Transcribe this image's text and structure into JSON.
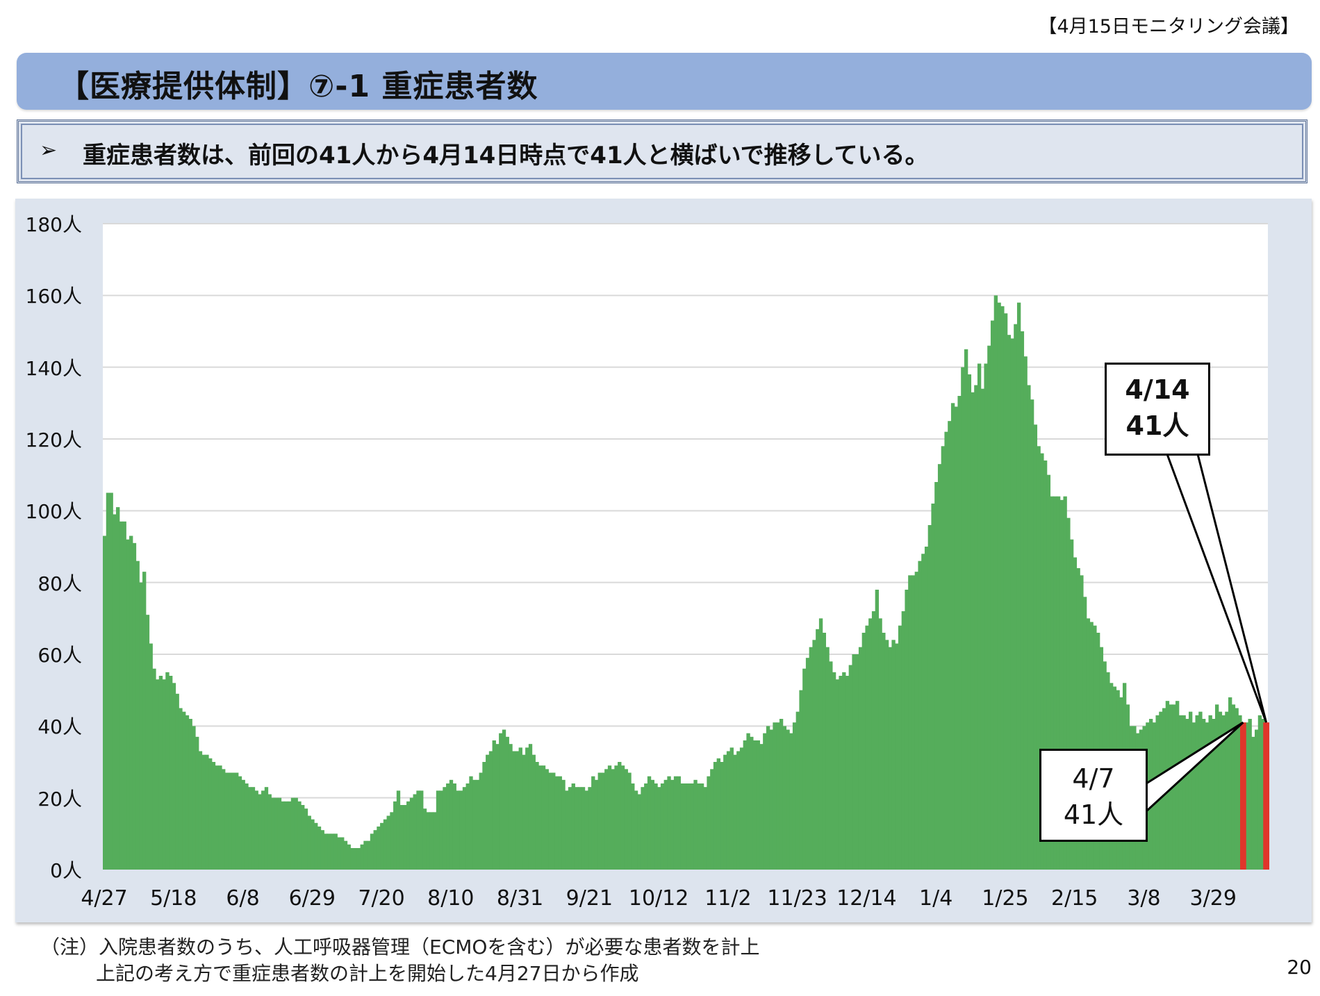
{
  "header": {
    "meeting_label": "【4月15日モニタリング会議】",
    "title": "【医療提供体制】⑦-1 重症患者数",
    "summary_bullet": "➢",
    "summary": "重症患者数は、前回の41人から4月14日時点で41人と横ばいで推移している。"
  },
  "footer": {
    "note_line1": "（注）入院患者数のうち、人工呼吸器管理（ECMOを含む）が必要な患者数を計上",
    "note_line2": "上記の考え方で重症患者数の計上を開始した4月27日から作成",
    "page_number": "20"
  },
  "callouts": {
    "latest": {
      "date": "4/14",
      "value": "41人"
    },
    "previous": {
      "date": "4/7",
      "value": "41人"
    }
  },
  "colors": {
    "bar": "#55ad5b",
    "highlight": "#e0352b",
    "frame_bg": "#dde4ee",
    "title_bg": "#94afdc",
    "gridline": "#d9d9d9"
  },
  "chart_data": {
    "type": "bar",
    "title": "重症患者数",
    "xlabel": "",
    "ylabel": "",
    "ylim": [
      0,
      180
    ],
    "yticks": [
      0,
      20,
      40,
      60,
      80,
      100,
      120,
      140,
      160,
      180
    ],
    "ytick_labels": [
      "0人",
      "20人",
      "40人",
      "60人",
      "80人",
      "100人",
      "120人",
      "140人",
      "160人",
      "180人"
    ],
    "xtick_labels": [
      "4/27",
      "5/18",
      "6/8",
      "6/29",
      "7/20",
      "8/10",
      "8/31",
      "9/21",
      "10/12",
      "11/2",
      "11/23",
      "12/14",
      "1/4",
      "1/25",
      "2/15",
      "3/8",
      "3/29"
    ],
    "xtick_interval_days": 21,
    "start_date": "4/27",
    "end_date": "4/14",
    "grid": true,
    "legend": null,
    "highlighted_bars": [
      {
        "date": "4/7",
        "index": 345,
        "value": 41
      },
      {
        "date": "4/14",
        "index": 352,
        "value": 41
      }
    ],
    "series": [
      {
        "name": "重症患者数",
        "values": [
          93,
          105,
          105,
          99,
          101,
          97,
          97,
          92,
          93,
          91,
          86,
          80,
          83,
          71,
          63,
          56,
          53,
          54,
          53,
          55,
          54,
          52,
          49,
          45,
          44,
          43,
          42,
          40,
          37,
          33,
          32,
          32,
          31,
          30,
          29,
          29,
          28,
          27,
          27,
          27,
          27,
          26,
          25,
          24,
          23,
          23,
          22,
          21,
          22,
          23,
          21,
          20,
          20,
          20,
          19,
          19,
          19,
          20,
          20,
          19,
          18,
          17,
          15,
          14,
          13,
          12,
          11,
          10,
          10,
          10,
          10,
          9,
          9,
          8,
          7,
          6,
          6,
          6,
          7,
          8,
          8,
          10,
          11,
          12,
          13,
          14,
          15,
          16,
          19,
          22,
          18,
          18,
          19,
          20,
          21,
          22,
          22,
          17,
          16,
          16,
          16,
          22,
          22,
          23,
          24,
          25,
          24,
          22,
          22,
          23,
          24,
          26,
          25,
          25,
          27,
          30,
          32,
          33,
          36,
          35,
          38,
          39,
          37,
          35,
          33,
          33,
          34,
          32,
          34,
          35,
          32,
          30,
          29,
          29,
          28,
          27,
          27,
          26,
          26,
          25,
          22,
          23,
          24,
          23,
          23,
          23,
          22,
          23,
          26,
          25,
          27,
          27,
          28,
          29,
          28,
          29,
          30,
          29,
          28,
          27,
          24,
          22,
          21,
          23,
          24,
          26,
          25,
          24,
          23,
          24,
          25,
          26,
          25,
          26,
          26,
          24,
          24,
          24,
          24,
          25,
          24,
          24,
          23,
          26,
          28,
          30,
          31,
          30,
          32,
          33,
          34,
          32,
          33,
          34,
          36,
          38,
          37,
          36,
          36,
          35,
          38,
          40,
          39,
          41,
          41,
          42,
          40,
          39,
          38,
          41,
          44,
          50,
          56,
          59,
          62,
          64,
          67,
          70,
          66,
          62,
          58,
          55,
          53,
          54,
          55,
          54,
          57,
          60,
          60,
          62,
          66,
          68,
          70,
          72,
          78,
          70,
          66,
          64,
          62,
          64,
          63,
          68,
          72,
          78,
          82,
          82,
          83,
          86,
          88,
          90,
          96,
          102,
          108,
          113,
          118,
          122,
          125,
          130,
          129,
          132,
          140,
          145,
          138,
          133,
          135,
          141,
          134,
          141,
          146,
          153,
          160,
          158,
          157,
          155,
          149,
          148,
          152,
          158,
          150,
          143,
          135,
          131,
          124,
          118,
          116,
          114,
          110,
          104,
          104,
          104,
          103,
          104,
          98,
          92,
          87,
          84,
          82,
          76,
          70,
          69,
          68,
          66,
          62,
          58,
          55,
          52,
          51,
          50,
          48,
          52,
          46,
          40,
          40,
          38,
          39,
          40,
          41,
          42,
          41,
          43,
          44,
          45,
          47,
          46,
          46,
          47,
          43,
          43,
          42,
          44,
          41,
          43,
          44,
          42,
          41,
          43,
          42,
          46,
          44,
          43,
          44,
          48,
          46,
          45,
          43,
          41,
          41,
          42,
          37,
          39,
          43,
          42,
          41
        ]
      }
    ]
  }
}
